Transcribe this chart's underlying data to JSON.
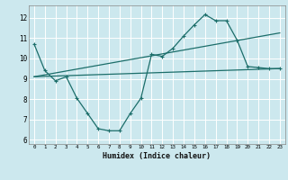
{
  "xlabel": "Humidex (Indice chaleur)",
  "xlim": [
    -0.5,
    23.5
  ],
  "ylim": [
    5.8,
    12.6
  ],
  "yticks": [
    6,
    7,
    8,
    9,
    10,
    11,
    12
  ],
  "xticks": [
    0,
    1,
    2,
    3,
    4,
    5,
    6,
    7,
    8,
    9,
    10,
    11,
    12,
    13,
    14,
    15,
    16,
    17,
    18,
    19,
    20,
    21,
    22,
    23
  ],
  "bg_color": "#cce8ee",
  "line_color": "#1c6e6a",
  "grid_color": "#ffffff",
  "line1_x": [
    0,
    1,
    2,
    3,
    4,
    5,
    6,
    7,
    8,
    9,
    10,
    11,
    12,
    13,
    14,
    15,
    16,
    17,
    18,
    19,
    20,
    21,
    22,
    23
  ],
  "line1_y": [
    10.7,
    9.4,
    8.9,
    9.1,
    8.05,
    7.3,
    6.55,
    6.45,
    6.45,
    7.3,
    8.05,
    10.2,
    10.1,
    10.5,
    11.1,
    11.65,
    12.15,
    11.85,
    11.85,
    10.9,
    9.6,
    9.55,
    9.5,
    9.5
  ],
  "line2_x": [
    0,
    23
  ],
  "line2_y": [
    9.1,
    9.5
  ],
  "line3_x": [
    0,
    23
  ],
  "line3_y": [
    9.1,
    11.25
  ]
}
